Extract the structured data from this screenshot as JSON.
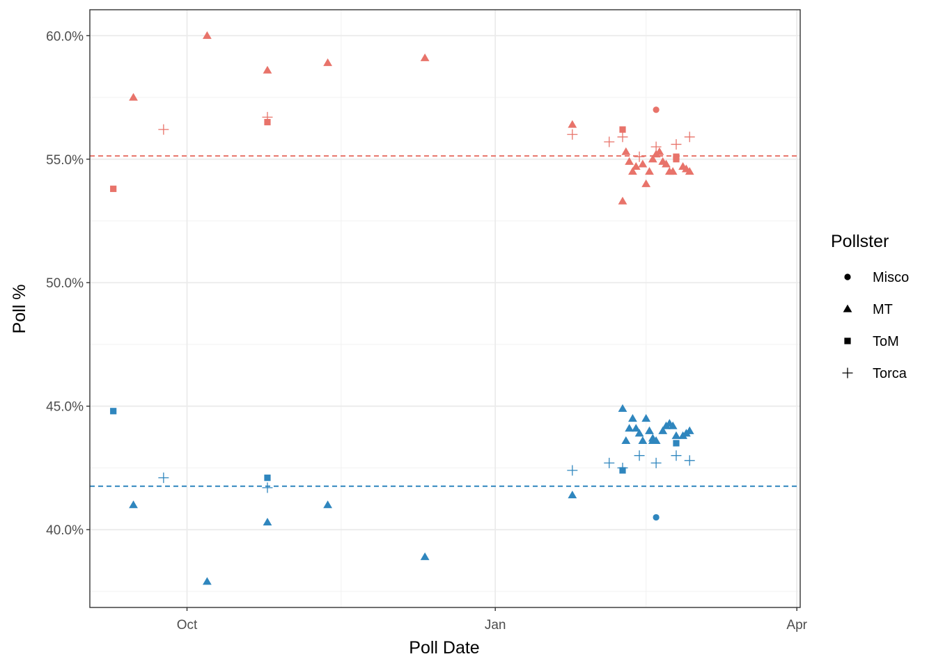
{
  "chart_data": {
    "type": "scatter",
    "xlabel": "Poll Date",
    "ylabel": "Poll %",
    "x_axis": {
      "type": "date",
      "range": [
        "2021-09-02",
        "2022-04-02"
      ],
      "ticks": [
        {
          "date": "2021-10-01",
          "label": "Oct"
        },
        {
          "date": "2022-01-01",
          "label": "Jan"
        },
        {
          "date": "2022-04-01",
          "label": "Apr"
        }
      ],
      "minor_gridlines": [
        "2021-11-16",
        "2022-02-15"
      ]
    },
    "y_axis": {
      "range": [
        0.3685,
        0.6105
      ],
      "ticks": [
        {
          "value": 0.4,
          "label": "40.0%"
        },
        {
          "value": 0.45,
          "label": "45.0%"
        },
        {
          "value": 0.5,
          "label": "50.0%"
        },
        {
          "value": 0.55,
          "label": "55.0%"
        },
        {
          "value": 0.6,
          "label": "60.0%"
        }
      ],
      "minor_gridlines": [
        0.375,
        0.425,
        0.475,
        0.525,
        0.575
      ]
    },
    "grid": true,
    "legend": {
      "title": "Pollster",
      "placement": "right",
      "entries": [
        {
          "label": "Misco",
          "shape": "circle"
        },
        {
          "label": "MT",
          "shape": "triangle"
        },
        {
          "label": "ToM",
          "shape": "square"
        },
        {
          "label": "Torca",
          "shape": "plus"
        }
      ]
    },
    "reference_lines": [
      {
        "group": "red",
        "value": 0.5513,
        "color": "#E8736A",
        "style": "dashed"
      },
      {
        "group": "blue",
        "value": 0.4176,
        "color": "#2F86BE",
        "style": "dashed"
      }
    ],
    "colors": {
      "red": "#E8736A",
      "blue": "#2F86BE"
    },
    "groups": [
      {
        "key": "red",
        "points": [
          {
            "date": "2021-09-09",
            "value": 0.538,
            "pollster": "ToM"
          },
          {
            "date": "2021-09-15",
            "value": 0.575,
            "pollster": "MT"
          },
          {
            "date": "2021-09-24",
            "value": 0.562,
            "pollster": "Torca"
          },
          {
            "date": "2021-10-07",
            "value": 0.6,
            "pollster": "MT"
          },
          {
            "date": "2021-10-25",
            "value": 0.586,
            "pollster": "MT"
          },
          {
            "date": "2021-10-25",
            "value": 0.565,
            "pollster": "ToM"
          },
          {
            "date": "2021-10-25",
            "value": 0.567,
            "pollster": "Torca"
          },
          {
            "date": "2021-11-12",
            "value": 0.589,
            "pollster": "MT"
          },
          {
            "date": "2021-12-11",
            "value": 0.591,
            "pollster": "MT"
          },
          {
            "date": "2022-01-24",
            "value": 0.564,
            "pollster": "MT"
          },
          {
            "date": "2022-01-24",
            "value": 0.56,
            "pollster": "Torca"
          },
          {
            "date": "2022-02-04",
            "value": 0.557,
            "pollster": "Torca"
          },
          {
            "date": "2022-02-08",
            "value": 0.562,
            "pollster": "ToM"
          },
          {
            "date": "2022-02-08",
            "value": 0.559,
            "pollster": "Torca"
          },
          {
            "date": "2022-02-08",
            "value": 0.533,
            "pollster": "MT"
          },
          {
            "date": "2022-02-09",
            "value": 0.553,
            "pollster": "MT"
          },
          {
            "date": "2022-02-10",
            "value": 0.549,
            "pollster": "MT"
          },
          {
            "date": "2022-02-11",
            "value": 0.545,
            "pollster": "MT"
          },
          {
            "date": "2022-02-12",
            "value": 0.547,
            "pollster": "MT"
          },
          {
            "date": "2022-02-13",
            "value": 0.551,
            "pollster": "Torca"
          },
          {
            "date": "2022-02-14",
            "value": 0.548,
            "pollster": "MT"
          },
          {
            "date": "2022-02-15",
            "value": 0.54,
            "pollster": "MT"
          },
          {
            "date": "2022-02-16",
            "value": 0.545,
            "pollster": "MT"
          },
          {
            "date": "2022-02-17",
            "value": 0.55,
            "pollster": "MT"
          },
          {
            "date": "2022-02-18",
            "value": 0.552,
            "pollster": "MT"
          },
          {
            "date": "2022-02-18",
            "value": 0.57,
            "pollster": "Misco"
          },
          {
            "date": "2022-02-18",
            "value": 0.555,
            "pollster": "Torca"
          },
          {
            "date": "2022-02-19",
            "value": 0.553,
            "pollster": "MT"
          },
          {
            "date": "2022-02-20",
            "value": 0.549,
            "pollster": "MT"
          },
          {
            "date": "2022-02-21",
            "value": 0.548,
            "pollster": "MT"
          },
          {
            "date": "2022-02-22",
            "value": 0.545,
            "pollster": "MT"
          },
          {
            "date": "2022-02-23",
            "value": 0.545,
            "pollster": "MT"
          },
          {
            "date": "2022-02-24",
            "value": 0.551,
            "pollster": "ToM"
          },
          {
            "date": "2022-02-24",
            "value": 0.55,
            "pollster": "ToM"
          },
          {
            "date": "2022-02-24",
            "value": 0.556,
            "pollster": "Torca"
          },
          {
            "date": "2022-02-26",
            "value": 0.547,
            "pollster": "MT"
          },
          {
            "date": "2022-02-27",
            "value": 0.546,
            "pollster": "MT"
          },
          {
            "date": "2022-02-28",
            "value": 0.545,
            "pollster": "MT"
          },
          {
            "date": "2022-02-28",
            "value": 0.559,
            "pollster": "Torca"
          }
        ]
      },
      {
        "key": "blue",
        "points": [
          {
            "date": "2021-09-09",
            "value": 0.448,
            "pollster": "ToM"
          },
          {
            "date": "2021-09-15",
            "value": 0.41,
            "pollster": "MT"
          },
          {
            "date": "2021-09-24",
            "value": 0.421,
            "pollster": "Torca"
          },
          {
            "date": "2021-10-07",
            "value": 0.379,
            "pollster": "MT"
          },
          {
            "date": "2021-10-25",
            "value": 0.403,
            "pollster": "MT"
          },
          {
            "date": "2021-10-25",
            "value": 0.421,
            "pollster": "ToM"
          },
          {
            "date": "2021-10-25",
            "value": 0.417,
            "pollster": "Torca"
          },
          {
            "date": "2021-11-12",
            "value": 0.41,
            "pollster": "MT"
          },
          {
            "date": "2021-12-11",
            "value": 0.389,
            "pollster": "MT"
          },
          {
            "date": "2022-01-24",
            "value": 0.414,
            "pollster": "MT"
          },
          {
            "date": "2022-01-24",
            "value": 0.424,
            "pollster": "Torca"
          },
          {
            "date": "2022-02-04",
            "value": 0.427,
            "pollster": "Torca"
          },
          {
            "date": "2022-02-08",
            "value": 0.424,
            "pollster": "ToM"
          },
          {
            "date": "2022-02-08",
            "value": 0.425,
            "pollster": "Torca"
          },
          {
            "date": "2022-02-08",
            "value": 0.449,
            "pollster": "MT"
          },
          {
            "date": "2022-02-09",
            "value": 0.436,
            "pollster": "MT"
          },
          {
            "date": "2022-02-10",
            "value": 0.441,
            "pollster": "MT"
          },
          {
            "date": "2022-02-11",
            "value": 0.445,
            "pollster": "MT"
          },
          {
            "date": "2022-02-12",
            "value": 0.441,
            "pollster": "MT"
          },
          {
            "date": "2022-02-13",
            "value": 0.43,
            "pollster": "Torca"
          },
          {
            "date": "2022-02-13",
            "value": 0.439,
            "pollster": "MT"
          },
          {
            "date": "2022-02-14",
            "value": 0.436,
            "pollster": "MT"
          },
          {
            "date": "2022-02-15",
            "value": 0.445,
            "pollster": "MT"
          },
          {
            "date": "2022-02-16",
            "value": 0.44,
            "pollster": "MT"
          },
          {
            "date": "2022-02-17",
            "value": 0.436,
            "pollster": "MT"
          },
          {
            "date": "2022-02-17",
            "value": 0.437,
            "pollster": "MT"
          },
          {
            "date": "2022-02-18",
            "value": 0.436,
            "pollster": "MT"
          },
          {
            "date": "2022-02-18",
            "value": 0.405,
            "pollster": "Misco"
          },
          {
            "date": "2022-02-18",
            "value": 0.427,
            "pollster": "Torca"
          },
          {
            "date": "2022-02-20",
            "value": 0.44,
            "pollster": "MT"
          },
          {
            "date": "2022-02-21",
            "value": 0.442,
            "pollster": "MT"
          },
          {
            "date": "2022-02-22",
            "value": 0.443,
            "pollster": "MT"
          },
          {
            "date": "2022-02-23",
            "value": 0.442,
            "pollster": "MT"
          },
          {
            "date": "2022-02-24",
            "value": 0.438,
            "pollster": "MT"
          },
          {
            "date": "2022-02-24",
            "value": 0.435,
            "pollster": "ToM"
          },
          {
            "date": "2022-02-24",
            "value": 0.43,
            "pollster": "Torca"
          },
          {
            "date": "2022-02-26",
            "value": 0.438,
            "pollster": "MT"
          },
          {
            "date": "2022-02-27",
            "value": 0.439,
            "pollster": "MT"
          },
          {
            "date": "2022-02-28",
            "value": 0.44,
            "pollster": "MT"
          },
          {
            "date": "2022-02-28",
            "value": 0.428,
            "pollster": "Torca"
          }
        ]
      }
    ]
  }
}
